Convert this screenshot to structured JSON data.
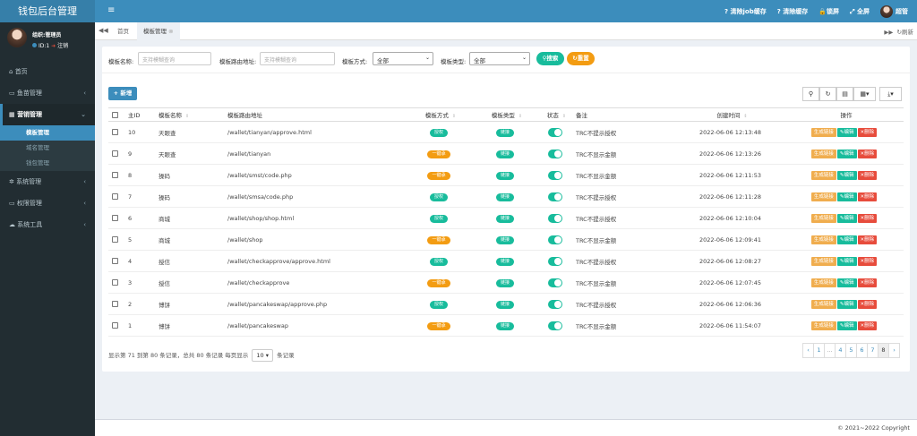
{
  "app": {
    "title": "钱包后台管理"
  },
  "user": {
    "name": "组织:管理员",
    "id_label": "ID:1",
    "logout": "注销",
    "top_name": "超管"
  },
  "sidebar": {
    "items": [
      {
        "label": "首页",
        "icon": "home-icon"
      },
      {
        "label": "鱼苗管理",
        "icon": "fish-icon"
      },
      {
        "label": "营销管理",
        "icon": "table-icon"
      },
      {
        "label": "系统管理",
        "icon": "gear-icon"
      },
      {
        "label": "权限管理",
        "icon": "key-icon"
      },
      {
        "label": "系统工具",
        "icon": "cloud-icon"
      }
    ],
    "submenu": [
      {
        "label": "模板管理"
      },
      {
        "label": "域名管理"
      },
      {
        "label": "钱包管理"
      }
    ]
  },
  "topbar": {
    "clear_job": "清除job缓存",
    "clear_cache": "清除缓存",
    "lock": "锁屏",
    "fullscreen": "全屏"
  },
  "tabs": {
    "home": "首页",
    "current": "模板管理",
    "refresh": "刷新"
  },
  "filter": {
    "name_label": "模板名称:",
    "name_placeholder": "支持模糊查询",
    "route_label": "模板路由地址:",
    "route_placeholder": "支持模糊查询",
    "method_label": "模板方式:",
    "method_value": "全部",
    "type_label": "模板类型:",
    "type_value": "全部",
    "search": "搜索",
    "reset": "重置"
  },
  "toolbar": {
    "add": "新增"
  },
  "table": {
    "headers": [
      "主ID",
      "模板名称",
      "模板路由地址",
      "模板方式",
      "模板类型",
      "状态",
      "备注",
      "创建时间",
      "操作"
    ],
    "rows": [
      {
        "id": "10",
        "name": "天眼查",
        "route": "/wallet/tianyan/approve.html",
        "method": "授权",
        "type": "链接",
        "note": "TRC不提示授权",
        "time": "2022-06-06 12:13:48"
      },
      {
        "id": "9",
        "name": "天眼查",
        "route": "/wallet/tianyan",
        "method": "一键承",
        "type": "链接",
        "note": "TRC不显示金额",
        "time": "2022-06-06 12:13:26"
      },
      {
        "id": "8",
        "name": "操码",
        "route": "/wallet/smst/code.php",
        "method": "一键承",
        "type": "链接",
        "note": "TRC不显示金额",
        "time": "2022-06-06 12:11:53"
      },
      {
        "id": "7",
        "name": "操码",
        "route": "/wallet/smsa/code.php",
        "method": "授权",
        "type": "链接",
        "note": "TRC不提示授权",
        "time": "2022-06-06 12:11:28"
      },
      {
        "id": "6",
        "name": "商城",
        "route": "/wallet/shop/shop.html",
        "method": "授权",
        "type": "链接",
        "note": "TRC不提示授权",
        "time": "2022-06-06 12:10:04"
      },
      {
        "id": "5",
        "name": "商城",
        "route": "/wallet/shop",
        "method": "一键承",
        "type": "链接",
        "note": "TRC不显示金额",
        "time": "2022-06-06 12:09:41"
      },
      {
        "id": "4",
        "name": "授信",
        "route": "/wallet/checkapprove/approve.html",
        "method": "授权",
        "type": "链接",
        "note": "TRC不提示授权",
        "time": "2022-06-06 12:08:27"
      },
      {
        "id": "3",
        "name": "授信",
        "route": "/wallet/checkapprove",
        "method": "一键承",
        "type": "链接",
        "note": "TRC不显示金额",
        "time": "2022-06-06 12:07:45"
      },
      {
        "id": "2",
        "name": "博饼",
        "route": "/wallet/pancakeswap/approve.php",
        "method": "授权",
        "type": "链接",
        "note": "TRC不提示授权",
        "time": "2022-06-06 12:06:36"
      },
      {
        "id": "1",
        "name": "博饼",
        "route": "/wallet/pancakeswap",
        "method": "一键承",
        "type": "链接",
        "note": "TRC不显示金额",
        "time": "2022-06-06 11:54:07"
      }
    ],
    "actions": {
      "gen": "生成链接",
      "edit": "编辑",
      "del": "删除"
    }
  },
  "pagination": {
    "summary": "显示第 71 到第 80 条记录，总共 80 条记录 每页显示",
    "per_page": "10",
    "suffix": "条记录",
    "pages": [
      "‹",
      "1",
      "...",
      "4",
      "5",
      "6",
      "7",
      "8",
      "›"
    ],
    "current": "8"
  },
  "footer": {
    "copyright": "© 2021~2022 Copyright"
  },
  "colors": {
    "sidebar": "#222d32",
    "header": "#3c8dbc",
    "logo": "#367fa9",
    "green": "#18bc9c",
    "orange": "#f39c12",
    "red": "#e74c3c",
    "warn": "#f0ad4e"
  }
}
